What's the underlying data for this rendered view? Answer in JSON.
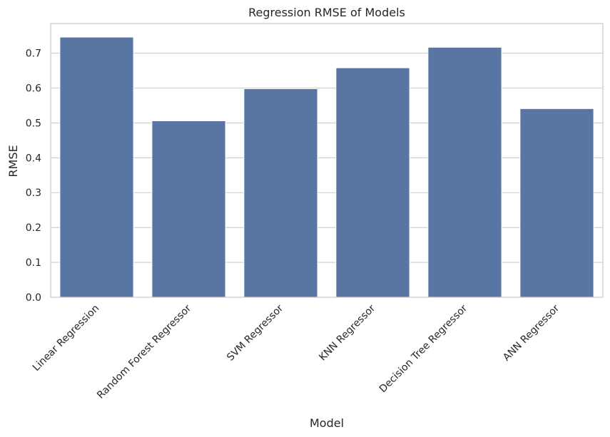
{
  "chart_data": {
    "type": "bar",
    "title": "Regression RMSE of Models",
    "xlabel": "Model",
    "ylabel": "RMSE",
    "categories": [
      "Linear Regression",
      "Random Forest Regressor",
      "SVM Regressor",
      "KNN Regressor",
      "Decision Tree Regressor",
      "ANN Regressor"
    ],
    "values": [
      0.746,
      0.506,
      0.598,
      0.658,
      0.717,
      0.541
    ],
    "ylim": [
      0,
      0.785
    ],
    "yticks": [
      0.0,
      0.1,
      0.2,
      0.3,
      0.4,
      0.5,
      0.6,
      0.7
    ],
    "ytick_labels": [
      "0.0",
      "0.1",
      "0.2",
      "0.3",
      "0.4",
      "0.5",
      "0.6",
      "0.7"
    ],
    "grid": "horizontal",
    "bar_color": "#5975a4",
    "grid_color": "#cccccc",
    "frame_color": "#cccccc"
  }
}
